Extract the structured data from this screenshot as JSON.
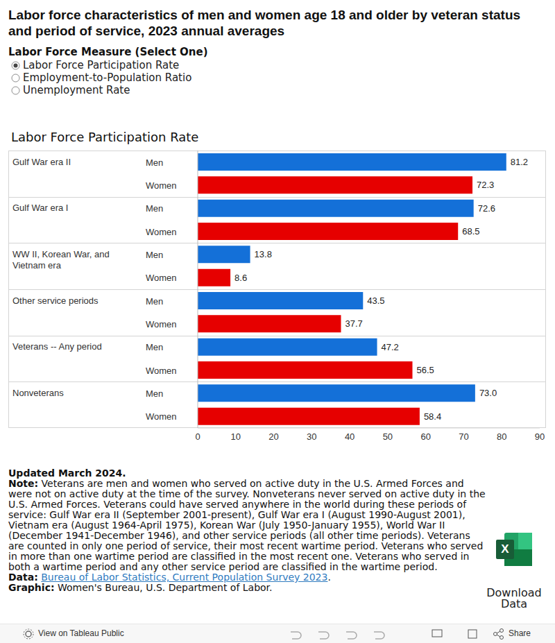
{
  "title": "Labor force characteristics of men and women age 18 and older by veteran status and period of service, 2023 annual averages",
  "selector": {
    "label": "Labor Force Measure (Select One)",
    "options": [
      "Labor Force Participation Rate",
      "Employment-to-Population Ratio",
      "Unemployment Rate"
    ],
    "selected": "Labor Force Participation Rate"
  },
  "chart_data": {
    "type": "bar",
    "title": "Labor Force Participation Rate",
    "orientation": "horizontal",
    "data_labels": true,
    "grid": false,
    "categories": [
      "Gulf War era II",
      "Gulf War era I",
      "WW II, Korean War, and Vietnam era",
      "Other service periods",
      "Veterans -- Any period",
      "Nonveterans"
    ],
    "series": [
      {
        "name": "Men",
        "color": "#1470d8",
        "values": [
          81.2,
          72.6,
          13.8,
          43.5,
          47.2,
          73
        ],
        "value_labels": [
          "81.2",
          "72.6",
          "13.8",
          "43.5",
          "47.2",
          "73.0"
        ]
      },
      {
        "name": "Women",
        "color": "#e60000",
        "values": [
          72.3,
          68.5,
          8.6,
          37.7,
          56.5,
          58.4
        ],
        "value_labels": [
          "72.3",
          "68.5",
          "8.6",
          "37.7",
          "56.5",
          "58.4"
        ]
      }
    ],
    "xlim": [
      0,
      90
    ],
    "xticks": [
      0,
      10,
      20,
      30,
      40,
      50,
      60,
      70,
      80,
      90
    ]
  },
  "footer": {
    "updated": "Updated March 2024.",
    "note_label": "Note:",
    "note": "Veterans are men and women who served on active duty in the U.S. Armed Forces and were not on active duty at the time of the survey. Nonveterans never served on active duty in the U.S. Armed Forces. Veterans could have served anywhere in the world during these periods of service: Gulf War era II (September 2001-present), Gulf War era I (August 1990-August 2001), Vietnam era (August 1964-April 1975), Korean War (July 1950-January 1955), World War II (December 1941-December 1946), and other service periods (all other time periods). Veterans are counted in only one period of service, their most recent wartime period. Veterans who served in more than one wartime period are classified in the most recent one. Veterans who served in both a wartime period and any other service period are classified in the wartime period.",
    "data_label": "Data:",
    "data_link": "Bureau of Labor Statistics, Current Population Survey 2023",
    "data_after": ".",
    "graphic_label": "Graphic:",
    "graphic": "Women's Bureau, U.S. Department of Labor."
  },
  "download": {
    "icon_letter": "X",
    "label": "Download Data"
  },
  "toolbar": {
    "left": "View on Tableau Public",
    "right": "Share"
  }
}
